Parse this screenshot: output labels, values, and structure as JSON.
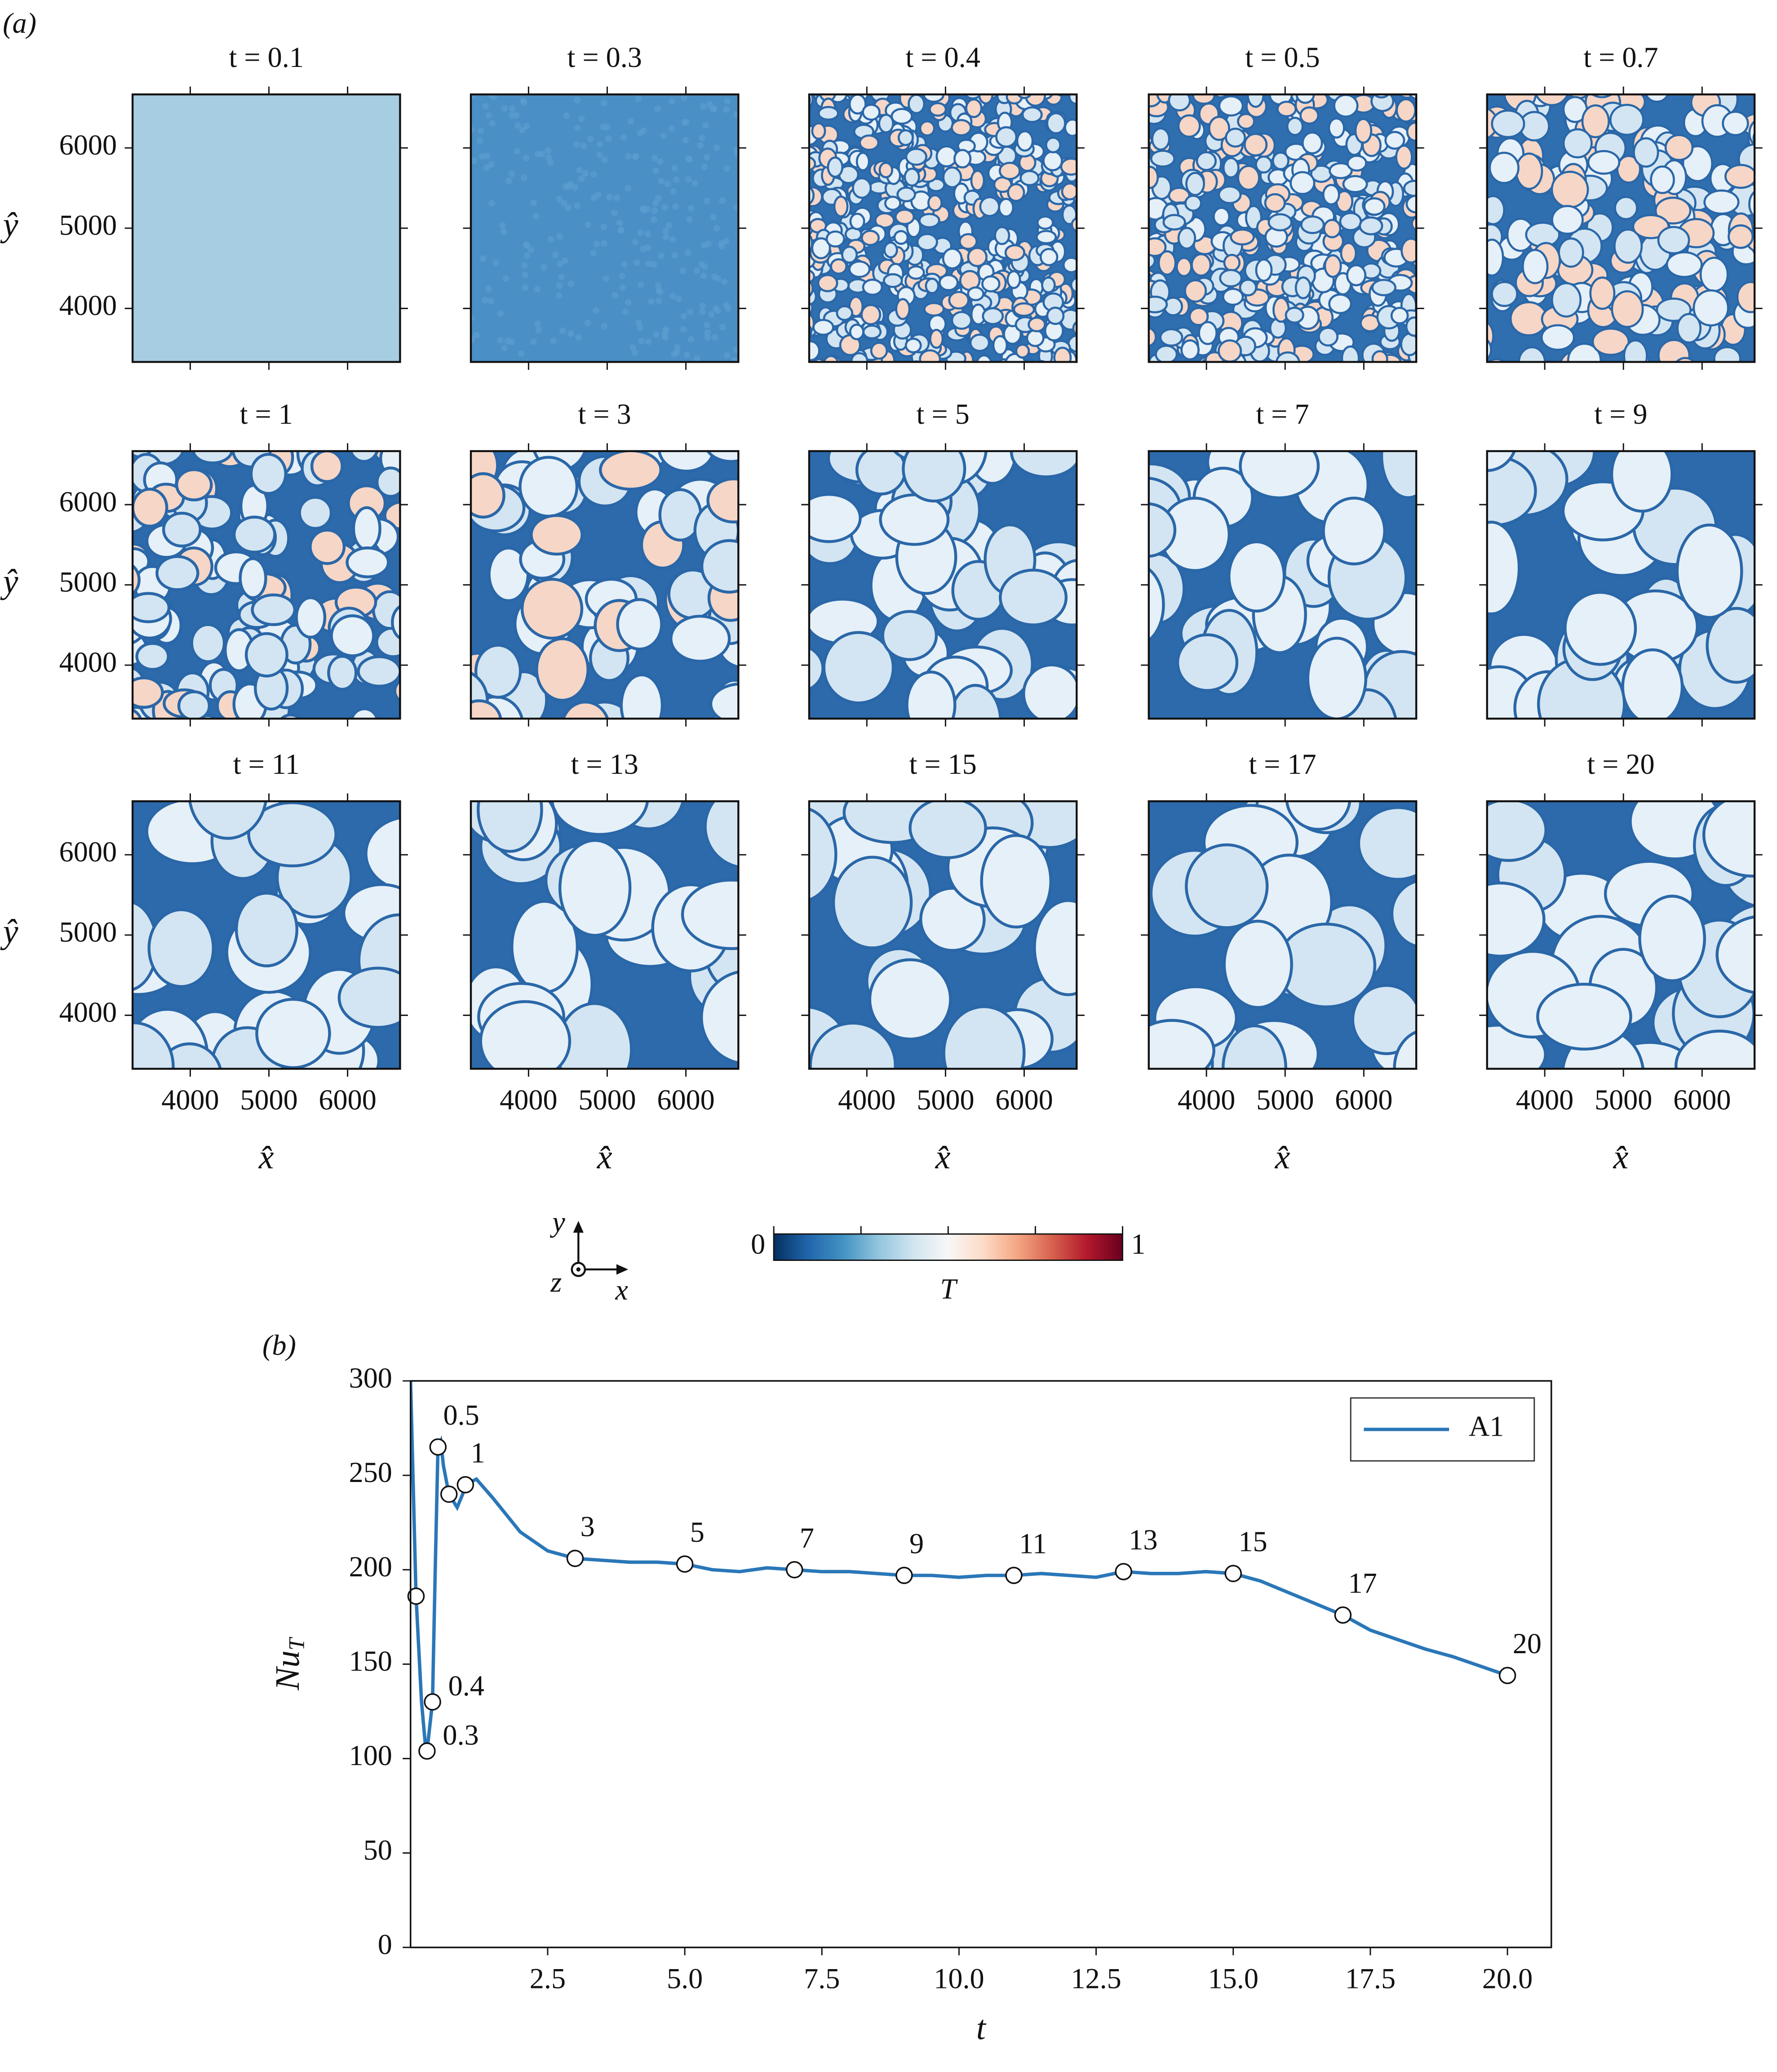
{
  "chart_data": [
    {
      "type": "heatmap-grid",
      "label": "(a)",
      "titles": [
        "t = 0.1",
        "t = 0.3",
        "t = 0.4",
        "t = 0.5",
        "t = 0.7",
        "t = 1",
        "t = 3",
        "t = 5",
        "t = 7",
        "t = 9",
        "t = 11",
        "t = 13",
        "t = 15",
        "t = 17",
        "t = 20"
      ],
      "xlabel": "x̂",
      "ylabel": "ŷ",
      "xlim": [
        3267,
        6667
      ],
      "ylim": [
        3333,
        6667
      ],
      "xticks": [
        4000,
        5000,
        6000
      ],
      "yticks": [
        4000,
        5000,
        6000
      ],
      "colorbar": {
        "label": "T",
        "clim": [
          0,
          1
        ],
        "ticks": [
          0,
          1
        ],
        "minor_ticks": [
          0.25,
          0.5,
          0.75
        ]
      },
      "axes_glyph": {
        "y": "y",
        "z": "z",
        "x": "x"
      }
    },
    {
      "type": "line",
      "label": "(b)",
      "xlabel": "t",
      "ylabel": "Nu",
      "ylabel_sub": "T",
      "xlim": [
        0,
        20.8
      ],
      "ylim": [
        0,
        300
      ],
      "xticks": [
        2.5,
        {
          "value": 5,
          "label": "5.0"
        },
        7.5,
        {
          "value": 10,
          "label": "10.0"
        },
        12.5,
        {
          "value": 15,
          "label": "15.0"
        },
        17.5,
        {
          "value": 20,
          "label": "20.0"
        }
      ],
      "yticks": [
        0,
        50,
        100,
        150,
        200,
        250,
        300
      ],
      "legend": "upper right",
      "series": [
        {
          "name": "A1",
          "color": "#2a77b8",
          "x": [
            0,
            0.1,
            0.2,
            0.28,
            0.3,
            0.4,
            0.45,
            0.5,
            0.55,
            0.6,
            0.7,
            0.85,
            0.95,
            1,
            1.2,
            1.5,
            2,
            2.5,
            3,
            3.5,
            4,
            4.5,
            5,
            5.5,
            6,
            6.5,
            7,
            7.5,
            8,
            8.5,
            9,
            9.5,
            10,
            10.5,
            11,
            11.5,
            12,
            12.5,
            13,
            13.5,
            14,
            14.5,
            15,
            15.5,
            16,
            16.5,
            17,
            17.5,
            18,
            18.5,
            19,
            19.5,
            20
          ],
          "values": [
            300,
            186,
            130,
            104,
            104,
            130,
            200,
            265,
            268,
            255,
            240,
            233,
            240,
            245,
            248,
            238,
            220,
            210,
            206,
            205,
            204,
            204,
            203,
            200,
            199,
            201,
            200,
            199,
            199,
            198,
            197,
            197,
            196,
            197,
            197,
            198,
            197,
            196,
            199,
            198,
            198,
            199,
            198,
            194,
            188,
            182,
            176,
            168,
            163,
            158,
            154,
            149,
            144
          ]
        }
      ],
      "markers": {
        "x": [
          0.1,
          0.3,
          0.4,
          0.5,
          0.7,
          1,
          3,
          5,
          7,
          9,
          11,
          13,
          15,
          17,
          20
        ],
        "values": [
          186,
          104,
          130,
          265,
          240,
          245,
          206,
          203,
          200,
          197,
          197,
          199,
          198,
          176,
          144
        ],
        "labels": [
          null,
          "0.3",
          "0.4",
          "0.5",
          null,
          "1",
          "3",
          "5",
          "7",
          "9",
          "11",
          "13",
          "15",
          "17",
          "20"
        ]
      }
    }
  ]
}
